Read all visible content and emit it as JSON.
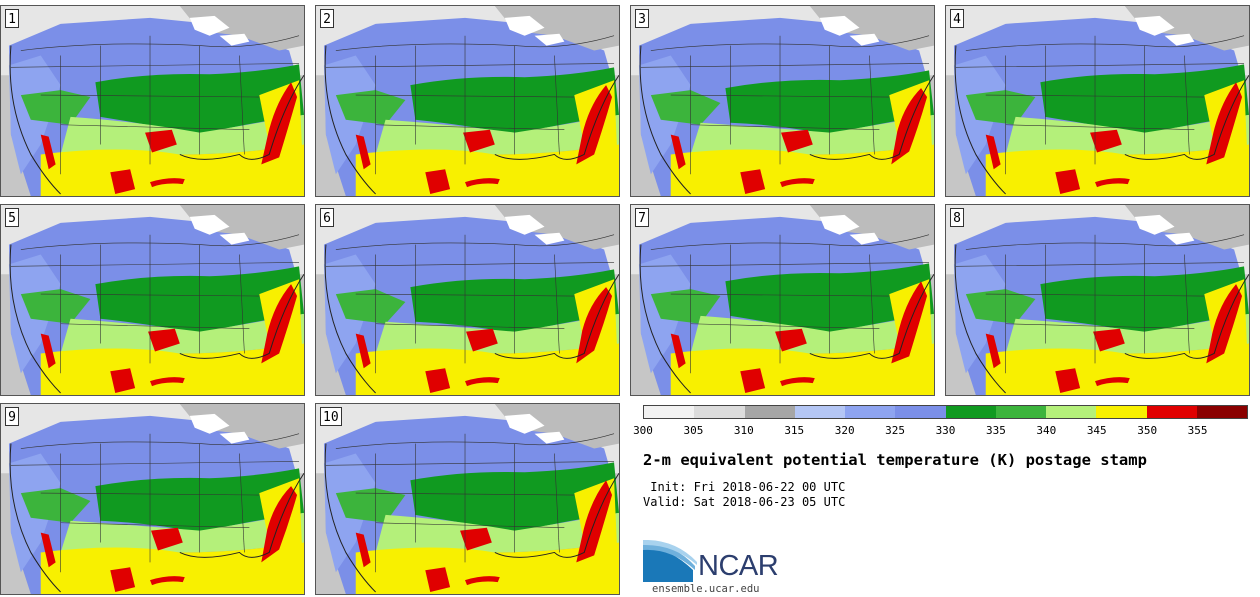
{
  "panels": [
    {
      "label": "1",
      "variant": 0
    },
    {
      "label": "2",
      "variant": 1
    },
    {
      "label": "3",
      "variant": 2
    },
    {
      "label": "4",
      "variant": 3
    },
    {
      "label": "5",
      "variant": 4
    },
    {
      "label": "6",
      "variant": 5
    },
    {
      "label": "7",
      "variant": 6
    },
    {
      "label": "8",
      "variant": 7
    },
    {
      "label": "9",
      "variant": 8
    },
    {
      "label": "10",
      "variant": 9
    }
  ],
  "colorbar": {
    "ticks": [
      "300",
      "305",
      "310",
      "315",
      "320",
      "325",
      "330",
      "335",
      "340",
      "345",
      "350",
      "355"
    ],
    "colors": [
      "#f2f2f2",
      "#dcdcdc",
      "#a6a6a6",
      "#b4c6f4",
      "#8ea4f0",
      "#7b8fe8",
      "#109a20",
      "#3cb43c",
      "#b4f07a",
      "#f8f000",
      "#e00000",
      "#8a0000"
    ]
  },
  "title": "2-m equivalent potential temperature (K) postage stamp",
  "init_line": " Init: Fri 2018-06-22 00 UTC",
  "valid_line": "Valid: Sat 2018-06-23 05 UTC",
  "logo": {
    "text": "NCAR",
    "icon": "ncar-swoosh-logo"
  },
  "site": "ensemble.ucar.edu"
}
